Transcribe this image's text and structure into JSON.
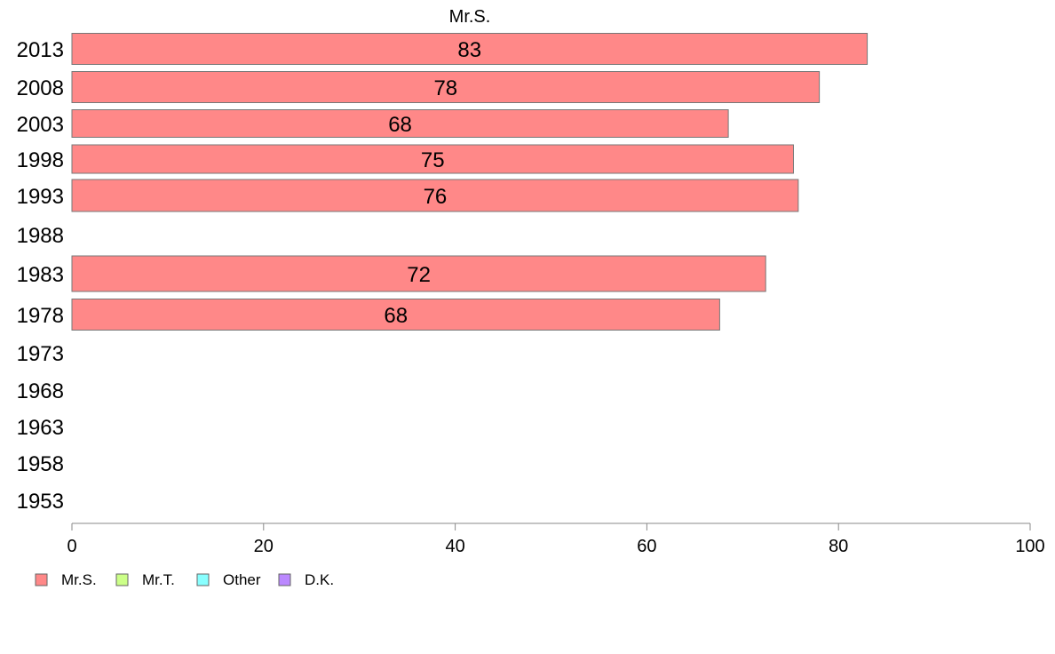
{
  "chart_data": {
    "type": "bar",
    "orientation": "horizontal",
    "title": "Mr.S.",
    "categories": [
      "2013",
      "2008",
      "2003",
      "1998",
      "1993",
      "1988",
      "1983",
      "1978",
      "1973",
      "1968",
      "1963",
      "1958",
      "1953"
    ],
    "series": [
      {
        "name": "Mr.S.",
        "color": "#ff8888",
        "values": [
          83,
          78,
          68.5,
          75.3,
          75.8,
          null,
          72.4,
          67.6,
          null,
          null,
          null,
          null,
          null
        ],
        "labels": [
          "83",
          "78",
          "68",
          "75",
          "76",
          "",
          "72",
          "68",
          "",
          "",
          "",
          "",
          ""
        ]
      }
    ],
    "xlim": [
      0,
      100
    ],
    "xticks": [
      "0",
      "20",
      "40",
      "60",
      "80",
      "100"
    ],
    "legend": {
      "placement": "bottom-left",
      "entries": [
        {
          "name": "Mr.S.",
          "color": "#ff8888"
        },
        {
          "name": "Mr.T.",
          "color": "#ccff88"
        },
        {
          "name": "Other",
          "color": "#88ffff"
        },
        {
          "name": "D.K.",
          "color": "#bb88ff"
        }
      ]
    },
    "grid": false
  }
}
